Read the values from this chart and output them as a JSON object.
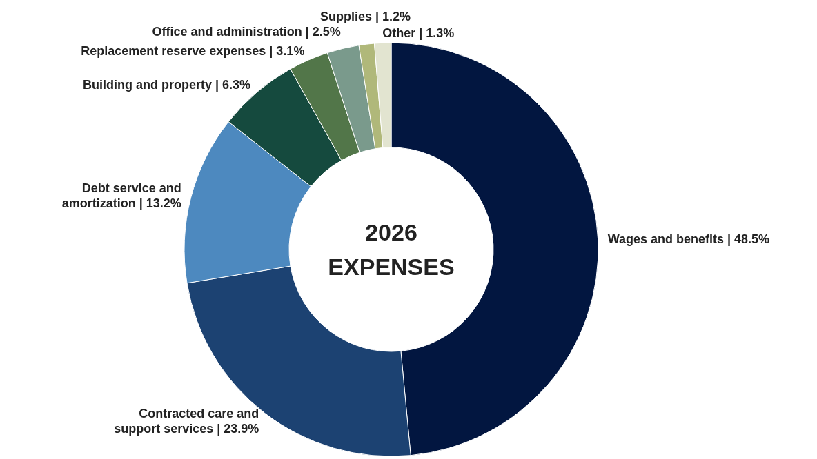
{
  "chart_data": {
    "type": "donut",
    "title": "2026 EXPENSES",
    "categories": [
      "Wages and benefits",
      "Contracted care and support services",
      "Debt service and amortization",
      "Building and property",
      "Replacement reserve expenses",
      "Office and administration",
      "Supplies",
      "Other"
    ],
    "values": [
      48.5,
      23.9,
      13.2,
      6.3,
      3.1,
      2.5,
      1.2,
      1.3
    ],
    "value_labels": [
      "| 48.5%",
      "| 23.9%",
      "| 13.2%",
      "| 6.3%",
      "| 3.1%",
      "| 2.5%",
      "| 1.2%",
      "| 1.3%"
    ],
    "colors": [
      "#021640",
      "#1c4272",
      "#4d89bf",
      "#154a3e",
      "#527649",
      "#7a9a8c",
      "#b0b87a",
      "#e2e4d0"
    ]
  }
}
